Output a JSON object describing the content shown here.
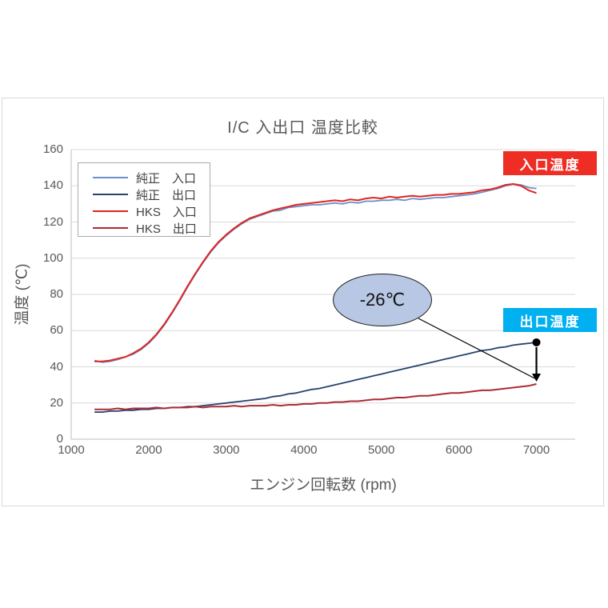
{
  "chart": {
    "title": "I/C 入出口 温度比較",
    "xlabel": "エンジン回転数 (rpm)",
    "ylabel": "温度 (℃)"
  },
  "annotations": {
    "inlet_label": "入口温度",
    "outlet_label": "出口温度",
    "delta_label": "-26℃",
    "inlet_box_color": "#EE2D24",
    "outlet_box_color": "#00B0F0",
    "ellipse_fill": "#B7C7E4",
    "ellipse_border": "#1F1F1F",
    "arrow_color": "#000000"
  },
  "chart_data": {
    "type": "line",
    "title": "I/C 入出口 温度比較",
    "xlabel": "エンジン回転数 (rpm)",
    "ylabel": "温度 (℃)",
    "xlim": [
      1000,
      7500
    ],
    "ylim": [
      0,
      160
    ],
    "xticks": [
      1000,
      2000,
      3000,
      4000,
      5000,
      6000,
      7000
    ],
    "yticks": [
      0,
      20,
      40,
      60,
      80,
      100,
      120,
      140,
      160
    ],
    "grid": "horizontal",
    "grid_color": "#D9D9D9",
    "axis_color": "#BFBFBF",
    "tick_text_color": "#595959",
    "legend_position": "top-left-inside",
    "x_rpm": [
      1300,
      1400,
      1500,
      1600,
      1700,
      1800,
      1900,
      2000,
      2100,
      2200,
      2300,
      2400,
      2500,
      2600,
      2700,
      2800,
      2900,
      3000,
      3100,
      3200,
      3300,
      3400,
      3500,
      3600,
      3700,
      3800,
      3900,
      4000,
      4100,
      4200,
      4300,
      4400,
      4500,
      4600,
      4700,
      4800,
      4900,
      5000,
      5100,
      5200,
      5300,
      5400,
      5500,
      5600,
      5700,
      5800,
      5900,
      6000,
      6100,
      6200,
      6300,
      6400,
      6500,
      6600,
      6700,
      6800,
      6900,
      7000
    ],
    "series": [
      {
        "name": "純正　入口",
        "color": "#6C8EC9",
        "width": 1.8,
        "values": [
          43.5,
          42.5,
          43,
          44,
          45.5,
          47,
          49.5,
          53,
          57.5,
          63,
          69.5,
          76.5,
          84,
          91,
          97.5,
          103.5,
          108.5,
          112.5,
          116,
          119,
          121.5,
          123,
          124.5,
          126,
          126.5,
          128,
          128.5,
          129,
          129.5,
          129.5,
          130,
          130.5,
          130,
          131,
          130.5,
          131.5,
          131.5,
          132,
          132,
          132.5,
          132,
          133,
          132.5,
          133,
          133.5,
          133.5,
          134,
          134.5,
          135,
          135.5,
          136.5,
          137.5,
          138.5,
          140,
          141,
          140.5,
          139,
          138.5
        ]
      },
      {
        "name": "純正　出口",
        "color": "#26426E",
        "width": 1.8,
        "end_marker": true,
        "values": [
          15,
          15,
          15.5,
          15.5,
          16,
          16,
          16.5,
          16.5,
          17,
          17,
          17.5,
          17.5,
          18,
          18,
          18.5,
          19,
          19.5,
          20,
          20.5,
          21,
          21.5,
          22,
          22.5,
          23.5,
          24,
          25,
          25.5,
          26.5,
          27.5,
          28,
          29,
          30,
          31,
          32,
          33,
          34,
          35,
          36,
          37,
          38,
          39,
          40,
          41,
          42,
          43,
          44,
          45,
          46,
          47,
          48,
          49,
          49.5,
          50.5,
          51,
          52,
          52.5,
          53,
          53.5
        ]
      },
      {
        "name": "HKS　入口",
        "color": "#DF2620",
        "width": 2,
        "values": [
          43,
          43,
          43.5,
          44.5,
          45.5,
          47.5,
          50,
          53.5,
          58,
          63.5,
          70,
          77,
          84.5,
          91.5,
          98,
          104,
          109,
          113,
          116.5,
          119.5,
          122,
          123.5,
          125,
          126.5,
          127.5,
          128.5,
          129.5,
          130,
          130.5,
          131,
          131.5,
          132,
          131.5,
          132.5,
          132,
          133,
          133.5,
          133,
          134,
          133.5,
          134,
          134.5,
          134,
          134.5,
          135,
          135,
          135.5,
          135.5,
          136,
          136.5,
          137.5,
          138,
          139,
          140.5,
          141,
          140,
          137.5,
          136
        ]
      },
      {
        "name": "HKS　出口",
        "color": "#AC2C34",
        "width": 2,
        "values": [
          16.5,
          16.5,
          16.5,
          17,
          16.5,
          17,
          17,
          17,
          17.5,
          17,
          17.5,
          17.5,
          17.5,
          18,
          17.5,
          18,
          18,
          18,
          18.5,
          18,
          18.5,
          18.5,
          18.5,
          19,
          18.5,
          19,
          19,
          19.5,
          19.5,
          20,
          20,
          20.5,
          20.5,
          21,
          21,
          21.5,
          22,
          22,
          22.5,
          23,
          23,
          23.5,
          24,
          24,
          24.5,
          25,
          25.5,
          25.5,
          26,
          26.5,
          27,
          27,
          27.5,
          28,
          28.5,
          29,
          29.5,
          30.5
        ]
      }
    ]
  }
}
